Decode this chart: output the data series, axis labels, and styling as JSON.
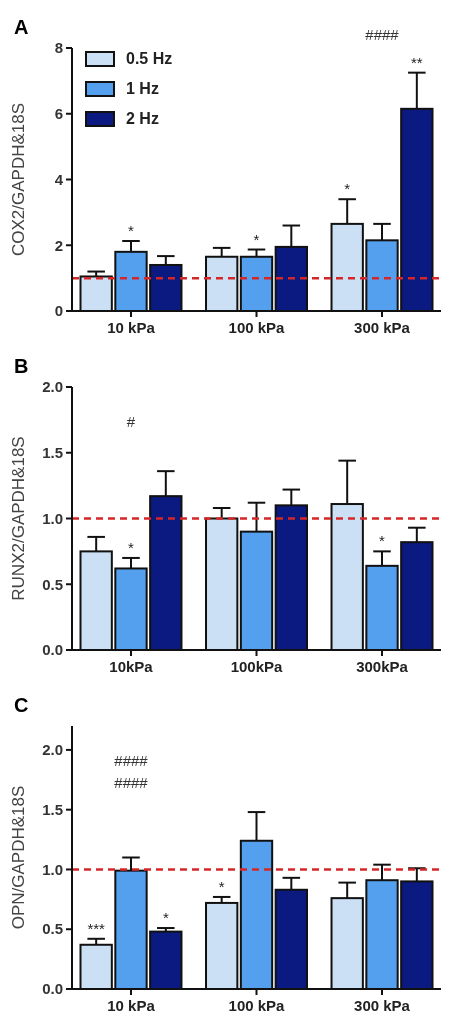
{
  "chart_data": [
    {
      "type": "bar",
      "title": "A",
      "ylabel": "COX2/GAPDH&18S",
      "categories": [
        "10 kPa",
        "100 kPa",
        "300 kPa"
      ],
      "series": [
        {
          "name": "0.5 Hz",
          "color": "#cce0f5",
          "values": [
            1.05,
            1.65,
            2.65
          ],
          "errors": [
            0.15,
            0.27,
            0.75
          ],
          "value_labels": [
            null,
            null,
            "*"
          ]
        },
        {
          "name": "1 Hz",
          "color": "#55a0ee",
          "values": [
            1.8,
            1.65,
            2.15
          ],
          "errors": [
            0.33,
            0.22,
            0.5
          ],
          "value_labels": [
            "*",
            "*",
            null
          ]
        },
        {
          "name": "2 Hz",
          "color": "#0b1a80",
          "values": [
            1.4,
            1.95,
            6.15
          ],
          "errors": [
            0.27,
            0.65,
            1.1
          ],
          "value_labels": [
            null,
            null,
            "**"
          ]
        }
      ],
      "ylim": [
        0,
        8
      ],
      "yticks": [
        0,
        2,
        4,
        6,
        8
      ],
      "legend": "top left",
      "ref_lines": [
        {
          "axis": "y",
          "value": 1,
          "color": "#d62728",
          "line_style": "dashed"
        }
      ],
      "annotations": [
        "####"
      ]
    },
    {
      "type": "bar",
      "title": "B",
      "ylabel": "RUNX2/GAPDH&18S",
      "categories": [
        "10kPa",
        "100kPa",
        "300kPa"
      ],
      "series": [
        {
          "color": "#cce0f5",
          "values": [
            0.75,
            1.0,
            1.11
          ],
          "errors": [
            0.11,
            0.08,
            0.33
          ],
          "value_labels": [
            null,
            null,
            null
          ]
        },
        {
          "color": "#55a0ee",
          "values": [
            0.62,
            0.9,
            0.64
          ],
          "errors": [
            0.08,
            0.22,
            0.11
          ],
          "value_labels": [
            "*",
            null,
            "*"
          ]
        },
        {
          "color": "#0b1a80",
          "values": [
            1.17,
            1.1,
            0.82
          ],
          "errors": [
            0.19,
            0.12,
            0.11
          ],
          "value_labels": [
            null,
            null,
            null
          ]
        }
      ],
      "ylim": [
        0,
        2
      ],
      "yticks": [
        {
          "value": 0,
          "label": "0.0"
        },
        {
          "value": 0.5,
          "label": "0.5"
        },
        {
          "value": 1,
          "label": "1.0"
        },
        {
          "value": 1.5,
          "label": "1.5"
        },
        {
          "value": 2,
          "label": "2.0"
        }
      ],
      "ref_lines": [
        {
          "axis": "y",
          "value": 1,
          "color": "#d62728",
          "line_style": "dashed"
        }
      ],
      "annotations": [
        "#"
      ]
    },
    {
      "type": "bar",
      "title": "C",
      "ylabel": "OPN/GAPDH&18S",
      "categories": [
        "10 kPa",
        "100 kPa",
        "300 kPa"
      ],
      "series": [
        {
          "color": "#cce0f5",
          "values": [
            0.37,
            0.72,
            0.76
          ],
          "errors": [
            0.05,
            0.05,
            0.13
          ],
          "value_labels": [
            "***",
            "*",
            null
          ]
        },
        {
          "color": "#55a0ee",
          "values": [
            0.99,
            1.24,
            0.91
          ],
          "errors": [
            0.11,
            0.24,
            0.13
          ],
          "value_labels": [
            null,
            null,
            null
          ]
        },
        {
          "color": "#0b1a80",
          "values": [
            0.48,
            0.83,
            0.9
          ],
          "errors": [
            0.03,
            0.1,
            0.11
          ],
          "value_labels": [
            "*",
            null,
            null
          ]
        }
      ],
      "ylim": [
        0,
        2.2
      ],
      "yticks": [
        {
          "value": 0,
          "label": "0.0"
        },
        {
          "value": 0.5,
          "label": "0.5"
        },
        {
          "value": 1,
          "label": "1.0"
        },
        {
          "value": 1.5,
          "label": "1.5"
        },
        {
          "value": 2,
          "label": "2.0"
        }
      ],
      "ref_lines": [
        {
          "axis": "y",
          "value": 1,
          "color": "#d62728",
          "line_style": "dashed"
        }
      ],
      "annotations": [
        "####",
        "####"
      ]
    }
  ]
}
